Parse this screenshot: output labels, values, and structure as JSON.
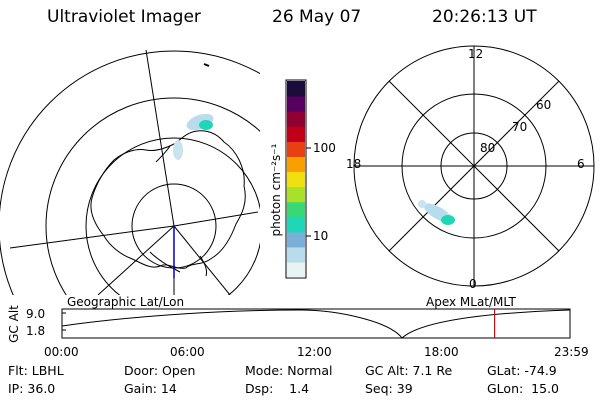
{
  "header": {
    "title": "Ultraviolet Imager",
    "date": "26 May 07",
    "time": "20:26:13 UT"
  },
  "left_map": {
    "caption": "Geographic Lat/Lon"
  },
  "right_map": {
    "caption": "Apex MLat/MLT",
    "mlt_labels": [
      "12",
      "18",
      "6",
      "0"
    ],
    "lat_labels": [
      "60",
      "70",
      "80"
    ]
  },
  "colorbar": {
    "unit_label": "photon cm⁻²s⁻¹",
    "tick_labels": [
      "100",
      "10"
    ],
    "scale": "log",
    "colors": [
      "#e8f4f4",
      "#b8dcec",
      "#7ab0d8",
      "#1fd6b8",
      "#38d878",
      "#a8e02a",
      "#f0e010",
      "#f8a000",
      "#e84010",
      "#c00018",
      "#900030",
      "#580060",
      "#1c0c3c"
    ]
  },
  "timeline": {
    "ylabel": "GC Alt",
    "yticks": [
      "9.0",
      "1.8"
    ],
    "xticks": [
      "00:00",
      "06:00",
      "12:00",
      "18:00",
      "23:59"
    ],
    "marker_time_hours": 20.44,
    "marker_color": "#e00000"
  },
  "footer": {
    "col1": [
      "Flt: LBHL",
      "IP: 36.0"
    ],
    "col2": [
      "Door: Open",
      "Gain: 14"
    ],
    "col3": [
      "Mode: Normal",
      "Dsp:    1.4"
    ],
    "col4": [
      "GC Alt: 7.1 Re",
      "Seq: 39"
    ],
    "col5": [
      "GLat: -74.9",
      "GLon:  15.0"
    ]
  }
}
